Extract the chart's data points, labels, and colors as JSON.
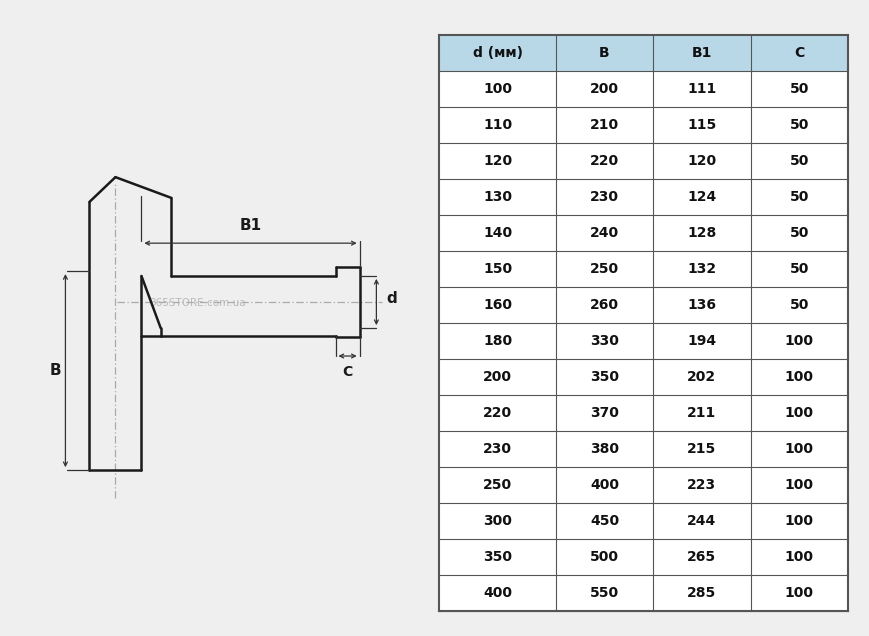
{
  "bg_color": "#efefef",
  "table_header_color": "#b8d8e8",
  "table_border_color": "#555555",
  "headers": [
    "d (мм)",
    "B",
    "B1",
    "C"
  ],
  "rows": [
    [
      "100",
      "200",
      "111",
      "50"
    ],
    [
      "110",
      "210",
      "115",
      "50"
    ],
    [
      "120",
      "220",
      "120",
      "50"
    ],
    [
      "130",
      "230",
      "124",
      "50"
    ],
    [
      "140",
      "240",
      "128",
      "50"
    ],
    [
      "150",
      "250",
      "132",
      "50"
    ],
    [
      "160",
      "260",
      "136",
      "50"
    ],
    [
      "180",
      "330",
      "194",
      "100"
    ],
    [
      "200",
      "350",
      "202",
      "100"
    ],
    [
      "220",
      "370",
      "211",
      "100"
    ],
    [
      "230",
      "380",
      "215",
      "100"
    ],
    [
      "250",
      "400",
      "223",
      "100"
    ],
    [
      "300",
      "450",
      "244",
      "100"
    ],
    [
      "350",
      "500",
      "265",
      "100"
    ],
    [
      "400",
      "550",
      "285",
      "100"
    ]
  ],
  "watermark": "365STORE.com.ua",
  "label_B1": "B1",
  "label_B": "B",
  "label_d": "d",
  "label_C": "C",
  "line_color": "#1a1a1a",
  "dim_color": "#333333"
}
